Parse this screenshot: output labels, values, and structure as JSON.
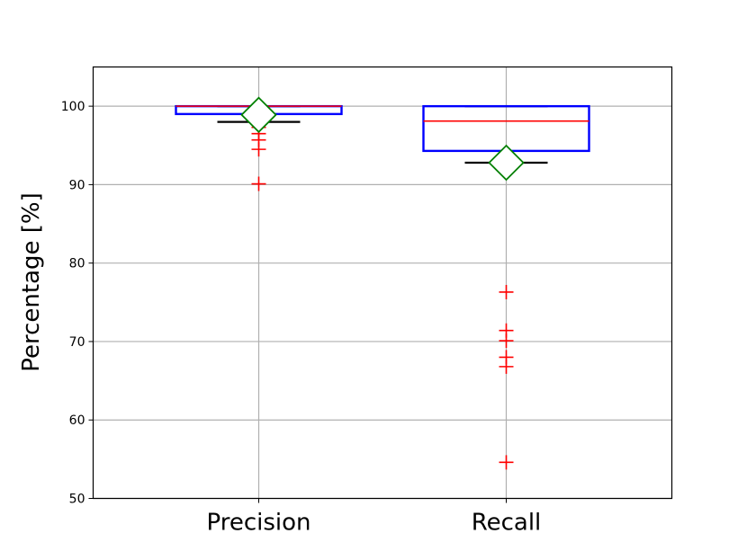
{
  "chart_data": {
    "type": "box",
    "title": "",
    "xlabel": "",
    "ylabel": "Percentage [%]",
    "ylim": [
      50,
      105
    ],
    "yticks": [
      50,
      60,
      70,
      80,
      90,
      100
    ],
    "grid": true,
    "categories": [
      "Precision",
      "Recall"
    ],
    "boxes": [
      {
        "category": "Precision",
        "whisker_low": 98.0,
        "q1": 99.0,
        "median": 100.0,
        "q3": 100.0,
        "whisker_high": 100.0,
        "mean": 98.9,
        "outliers": [
          97.3,
          96.5,
          95.7,
          94.5,
          90.1
        ]
      },
      {
        "category": "Recall",
        "whisker_low": 92.8,
        "q1": 94.3,
        "median": 98.1,
        "q3": 100.0,
        "whisker_high": 100.0,
        "mean": 92.8,
        "outliers": [
          76.3,
          71.4,
          70.1,
          68.0,
          66.8,
          54.6
        ]
      }
    ],
    "colors": {
      "box": "#0000ff",
      "median": "#ff0000",
      "whisker": "#000000",
      "outlier": "#ff0000",
      "mean_fill": "#ffffff",
      "mean_edge": "#008000",
      "grid": "#b0b0b0",
      "frame": "#000000"
    }
  }
}
